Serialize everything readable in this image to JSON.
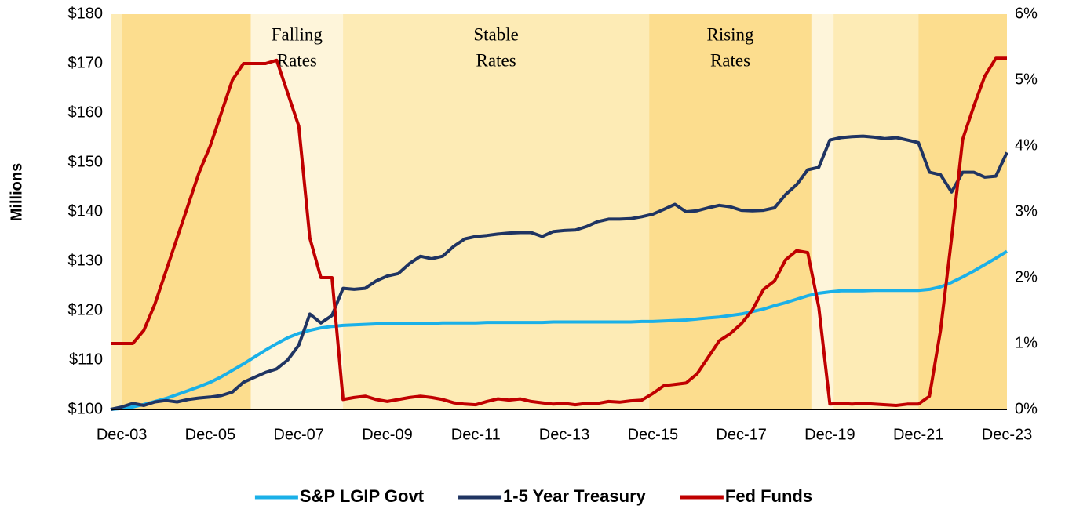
{
  "chart_data": {
    "type": "line",
    "y_label": "Millions",
    "x": [
      "Sep-03",
      "Dec-03",
      "Mar-04",
      "Jun-04",
      "Sep-04",
      "Dec-04",
      "Mar-05",
      "Jun-05",
      "Sep-05",
      "Dec-05",
      "Mar-06",
      "Jun-06",
      "Sep-06",
      "Dec-06",
      "Mar-07",
      "Jun-07",
      "Sep-07",
      "Dec-07",
      "Mar-08",
      "Jun-08",
      "Sep-08",
      "Dec-08",
      "Mar-09",
      "Jun-09",
      "Sep-09",
      "Dec-09",
      "Mar-10",
      "Jun-10",
      "Sep-10",
      "Dec-10",
      "Mar-11",
      "Jun-11",
      "Sep-11",
      "Dec-11",
      "Mar-12",
      "Jun-12",
      "Sep-12",
      "Dec-12",
      "Mar-13",
      "Jun-13",
      "Sep-13",
      "Dec-13",
      "Mar-14",
      "Jun-14",
      "Sep-14",
      "Dec-14",
      "Mar-15",
      "Jun-15",
      "Sep-15",
      "Dec-15",
      "Mar-16",
      "Jun-16",
      "Sep-16",
      "Dec-16",
      "Mar-17",
      "Jun-17",
      "Sep-17",
      "Dec-17",
      "Mar-18",
      "Jun-18",
      "Sep-18",
      "Dec-18",
      "Mar-19",
      "Jun-19",
      "Sep-19",
      "Dec-19",
      "Mar-20",
      "Jun-20",
      "Sep-20",
      "Dec-20",
      "Mar-21",
      "Jun-21",
      "Sep-21",
      "Dec-21",
      "Mar-22",
      "Jun-22",
      "Sep-22",
      "Dec-22",
      "Mar-23",
      "Jun-23",
      "Sep-23",
      "Dec-23"
    ],
    "xlim": [
      "Sep-03",
      "Dec-23"
    ],
    "xticks": [
      "Dec-03",
      "Dec-05",
      "Dec-07",
      "Dec-09",
      "Dec-11",
      "Dec-13",
      "Dec-15",
      "Dec-17",
      "Dec-19",
      "Dec-21",
      "Dec-23"
    ],
    "ylim": [
      100,
      180
    ],
    "yticks": [
      {
        "value": 100,
        "label": "$100"
      },
      {
        "value": 110,
        "label": "$110"
      },
      {
        "value": 120,
        "label": "$120"
      },
      {
        "value": 130,
        "label": "$130"
      },
      {
        "value": 140,
        "label": "$140"
      },
      {
        "value": 150,
        "label": "$150"
      },
      {
        "value": 160,
        "label": "$160"
      },
      {
        "value": 170,
        "label": "$170"
      },
      {
        "value": 180,
        "label": "$180"
      }
    ],
    "y2lim": [
      0,
      6
    ],
    "y2ticks": [
      {
        "value": 0,
        "label": "0%"
      },
      {
        "value": 1,
        "label": "1%"
      },
      {
        "value": 2,
        "label": "2%"
      },
      {
        "value": 3,
        "label": "3%"
      },
      {
        "value": 4,
        "label": "4%"
      },
      {
        "value": 5,
        "label": "5%"
      },
      {
        "value": 6,
        "label": "6%"
      }
    ],
    "bands": [
      {
        "start": "Sep-03",
        "end": "Dec-03",
        "color": "#fdebb5"
      },
      {
        "start": "Dec-03",
        "end": "Nov-06",
        "color": "#fcdd8e"
      },
      {
        "start": "Nov-06",
        "end": "Dec-08",
        "color": "#fef5da",
        "label": [
          "Falling",
          "Rates"
        ]
      },
      {
        "start": "Dec-08",
        "end": "Nov-15",
        "color": "#fdebb5",
        "label": [
          "Stable",
          "Rates"
        ]
      },
      {
        "start": "Nov-15",
        "end": "Jul-19",
        "color": "#fcdd8e",
        "label": [
          "Rising",
          "Rates"
        ]
      },
      {
        "start": "Jul-19",
        "end": "Jan-20",
        "color": "#fef5da"
      },
      {
        "start": "Jan-20",
        "end": "Dec-21",
        "color": "#fdebb5"
      },
      {
        "start": "Dec-21",
        "end": "Dec-23",
        "color": "#fcdd8e"
      }
    ],
    "series": [
      {
        "name": "S&P LGIP Govt",
        "color": "#1ab0e8",
        "values": [
          100,
          100.2,
          100.5,
          101,
          101.6,
          102.2,
          103,
          103.8,
          104.6,
          105.5,
          106.6,
          107.9,
          109.2,
          110.6,
          112,
          113.3,
          114.5,
          115.4,
          116,
          116.5,
          116.8,
          117,
          117.1,
          117.2,
          117.3,
          117.3,
          117.4,
          117.4,
          117.4,
          117.4,
          117.5,
          117.5,
          117.5,
          117.5,
          117.6,
          117.6,
          117.6,
          117.6,
          117.6,
          117.6,
          117.7,
          117.7,
          117.7,
          117.7,
          117.7,
          117.7,
          117.7,
          117.7,
          117.8,
          117.8,
          117.9,
          118,
          118.1,
          118.3,
          118.5,
          118.7,
          119,
          119.3,
          119.8,
          120.3,
          121,
          121.6,
          122.3,
          123,
          123.5,
          123.8,
          124,
          124,
          124,
          124.1,
          124.1,
          124.1,
          124.1,
          124.1,
          124.3,
          124.8,
          125.7,
          126.8,
          128,
          129.3,
          130.6,
          132
        ]
      },
      {
        "name": "1-5 Year Treasury",
        "color": "#1f3462",
        "values": [
          100,
          100.5,
          101.2,
          100.8,
          101.5,
          101.8,
          101.5,
          102,
          102.3,
          102.5,
          102.8,
          103.5,
          105.5,
          106.5,
          107.5,
          108.2,
          110,
          113,
          119.3,
          117.5,
          119,
          124.5,
          124.3,
          124.5,
          126,
          127,
          127.5,
          129.5,
          131,
          130.5,
          131,
          133,
          134.5,
          135,
          135.2,
          135.5,
          135.7,
          135.8,
          135.8,
          135,
          136,
          136.2,
          136.3,
          137,
          138,
          138.5,
          138.5,
          138.6,
          139,
          139.5,
          140.5,
          141.5,
          140,
          140.2,
          140.8,
          141.3,
          141,
          140.3,
          140.2,
          140.3,
          140.8,
          143.5,
          145.5,
          148.5,
          149,
          154.5,
          155,
          155.2,
          155.3,
          155.1,
          154.8,
          155,
          154.5,
          154,
          148,
          147.5,
          144,
          148,
          148,
          147,
          147.2,
          152
        ]
      },
      {
        "name": "Fed Funds",
        "color": "#c00000",
        "axis": "y2",
        "values": [
          1.0,
          1.0,
          1.0,
          1.2,
          1.6,
          2.1,
          2.6,
          3.1,
          3.6,
          4.0,
          4.5,
          5.0,
          5.25,
          5.25,
          5.25,
          5.3,
          4.8,
          4.3,
          2.6,
          2.0,
          2.0,
          0.15,
          0.18,
          0.2,
          0.15,
          0.12,
          0.15,
          0.18,
          0.2,
          0.18,
          0.15,
          0.1,
          0.08,
          0.07,
          0.12,
          0.16,
          0.14,
          0.16,
          0.12,
          0.1,
          0.08,
          0.09,
          0.07,
          0.09,
          0.09,
          0.12,
          0.11,
          0.13,
          0.14,
          0.24,
          0.36,
          0.38,
          0.4,
          0.54,
          0.79,
          1.04,
          1.15,
          1.3,
          1.51,
          1.82,
          1.95,
          2.27,
          2.41,
          2.38,
          1.55,
          0.08,
          0.09,
          0.08,
          0.09,
          0.08,
          0.07,
          0.06,
          0.08,
          0.08,
          0.2,
          1.2,
          2.6,
          4.1,
          4.6,
          5.06,
          5.33,
          5.33
        ]
      }
    ]
  }
}
